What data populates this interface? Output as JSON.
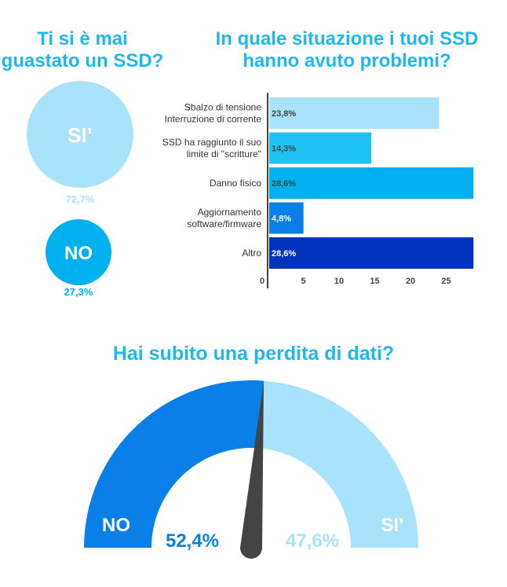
{
  "colors": {
    "title": "#1fb8ee",
    "light": "#a9e2fb",
    "mid": "#00b0ef",
    "blue": "#0a7fe8",
    "dark": "#0034bf",
    "needle": "#444444"
  },
  "chart_data": [
    {
      "type": "bubble",
      "title": "Ti si è mai guastato un SSD?",
      "categories": [
        "SI’",
        "NO"
      ],
      "values": [
        72.7,
        27.3
      ],
      "labels": [
        "72,7%",
        "27,3%"
      ]
    },
    {
      "type": "bar",
      "orientation": "horizontal",
      "title": "In quale situazione i tuoi SSD hanno avuto problemi?",
      "categories": [
        [
          "Sbalzo di tensione",
          "Interruzione di corrente"
        ],
        [
          "SSD ha raggiunto il suo",
          "limite di \"scritture\""
        ],
        [
          "Danno fisico"
        ],
        [
          "Aggiornamento",
          "software/firmware"
        ],
        [
          "Altro"
        ]
      ],
      "values": [
        23.8,
        14.3,
        28.6,
        4.8,
        28.6
      ],
      "labels": [
        "23,8%",
        "14,3%",
        "28,6%",
        "4,8%",
        "28,6%"
      ],
      "bar_colors": [
        "#a9e2fb",
        "#1fc3f3",
        "#00b0ef",
        "#0a7fe8",
        "#0034bf"
      ],
      "xticks": [
        "0",
        "5",
        "10",
        "15",
        "20",
        "25"
      ],
      "xlim": [
        0,
        30
      ],
      "grid": false
    },
    {
      "type": "gauge",
      "title": "Hai subito una perdita di dati?",
      "categories": [
        "NO",
        "SI’"
      ],
      "values": [
        52.4,
        47.6
      ],
      "labels": [
        "52,4%",
        "47,6%"
      ]
    }
  ]
}
